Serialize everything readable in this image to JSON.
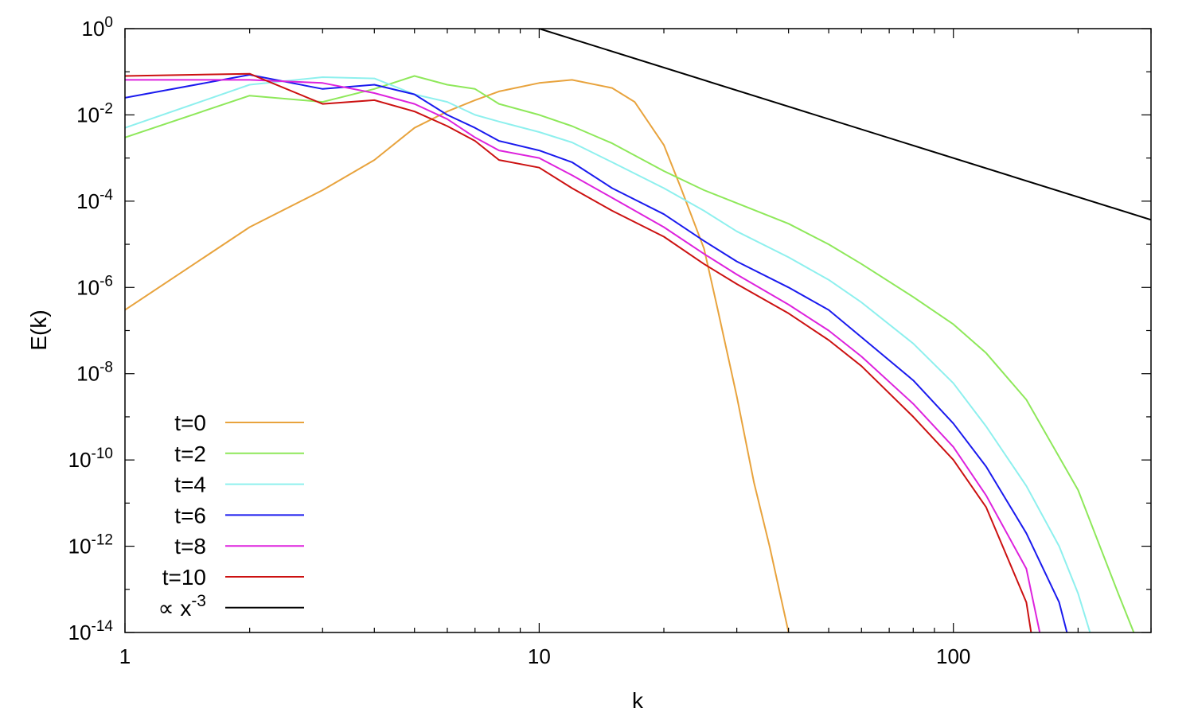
{
  "chart_data": {
    "type": "line",
    "title": "",
    "xlabel": "k",
    "ylabel": "E(k)",
    "x_scale": "log",
    "y_scale": "log",
    "xlim": [
      1,
      300
    ],
    "ylim": [
      1e-14,
      1
    ],
    "grid": false,
    "legend_position": "bottom-left",
    "x_ticks": [
      {
        "value": 1,
        "label": "1"
      },
      {
        "value": 10,
        "label": "10"
      },
      {
        "value": 100,
        "label": "100"
      }
    ],
    "y_ticks": [
      {
        "value": 1,
        "base": "10",
        "exp": "0"
      },
      {
        "value": 0.01,
        "base": "10",
        "exp": "-2"
      },
      {
        "value": 0.0001,
        "base": "10",
        "exp": "-4"
      },
      {
        "value": 1e-06,
        "base": "10",
        "exp": "-6"
      },
      {
        "value": 1e-08,
        "base": "10",
        "exp": "-8"
      },
      {
        "value": 1e-10,
        "base": "10",
        "exp": "-10"
      },
      {
        "value": 1e-12,
        "base": "10",
        "exp": "-12"
      },
      {
        "value": 1e-14,
        "base": "10",
        "exp": "-14"
      }
    ],
    "series": [
      {
        "name": "t=0",
        "color": "#e8a33d",
        "x": [
          1,
          2,
          3,
          4,
          5,
          6,
          7,
          8,
          10,
          12,
          15,
          17,
          20,
          22,
          25,
          27,
          30,
          33,
          36,
          40,
          42
        ],
        "y": [
          3e-07,
          2.5e-05,
          0.00018,
          0.0009,
          0.005,
          0.012,
          0.022,
          0.035,
          0.055,
          0.065,
          0.042,
          0.02,
          0.002,
          0.0002,
          8e-06,
          3e-07,
          3e-09,
          3e-11,
          1e-12,
          1e-14,
          1e-15
        ]
      },
      {
        "name": "t=2",
        "color": "#8ee85a",
        "x": [
          1,
          2,
          3,
          4,
          5,
          6,
          7,
          8,
          10,
          12,
          15,
          20,
          25,
          30,
          40,
          50,
          60,
          80,
          100,
          120,
          150,
          200,
          250,
          300
        ],
        "y": [
          0.003,
          0.028,
          0.02,
          0.04,
          0.08,
          0.05,
          0.04,
          0.018,
          0.01,
          0.0055,
          0.0022,
          0.0005,
          0.00018,
          9e-05,
          3e-05,
          1e-05,
          3.5e-06,
          6e-07,
          1.4e-07,
          3e-08,
          2.5e-09,
          2e-11,
          8e-14,
          1e-15
        ]
      },
      {
        "name": "t=4",
        "color": "#8ef0ee",
        "x": [
          1,
          2,
          3,
          4,
          5,
          6,
          7,
          8,
          10,
          12,
          15,
          20,
          25,
          30,
          40,
          50,
          60,
          80,
          100,
          120,
          150,
          180,
          200,
          230
        ],
        "y": [
          0.005,
          0.05,
          0.075,
          0.07,
          0.03,
          0.02,
          0.01,
          0.007,
          0.004,
          0.0023,
          0.0008,
          0.0002,
          6e-05,
          2e-05,
          5e-06,
          1.5e-06,
          4.5e-07,
          5e-08,
          6e-09,
          6e-10,
          2.5e-11,
          1e-12,
          8e-14,
          1e-15
        ]
      },
      {
        "name": "t=6",
        "color": "#1a1aee",
        "x": [
          1,
          2,
          3,
          4,
          5,
          6,
          7,
          8,
          10,
          12,
          15,
          20,
          25,
          30,
          40,
          50,
          60,
          80,
          100,
          120,
          150,
          180,
          200
        ],
        "y": [
          0.025,
          0.085,
          0.04,
          0.05,
          0.03,
          0.01,
          0.005,
          0.0025,
          0.0015,
          0.0008,
          0.0002,
          5e-05,
          1.2e-05,
          4e-06,
          1e-06,
          3e-07,
          7e-08,
          7e-09,
          7e-10,
          7e-11,
          2e-12,
          5e-14,
          1e-15
        ]
      },
      {
        "name": "t=8",
        "color": "#dd22dd",
        "x": [
          1,
          2,
          3,
          4,
          5,
          6,
          7,
          8,
          10,
          12,
          15,
          20,
          25,
          30,
          40,
          50,
          60,
          80,
          100,
          120,
          150,
          170
        ],
        "y": [
          0.065,
          0.065,
          0.055,
          0.032,
          0.018,
          0.008,
          0.003,
          0.0015,
          0.001,
          0.0004,
          0.00012,
          2.5e-05,
          6e-06,
          2e-06,
          4e-07,
          1e-07,
          2.5e-08,
          2e-09,
          2e-10,
          1.5e-11,
          3e-13,
          1e-15
        ]
      },
      {
        "name": "t=10",
        "color": "#cc1111",
        "x": [
          1,
          2,
          3,
          4,
          5,
          6,
          7,
          8,
          10,
          12,
          15,
          20,
          25,
          30,
          40,
          50,
          60,
          80,
          100,
          120,
          150,
          160
        ],
        "y": [
          0.08,
          0.09,
          0.018,
          0.022,
          0.012,
          0.0055,
          0.0025,
          0.0009,
          0.0006,
          0.0002,
          6e-05,
          1.5e-05,
          3.5e-06,
          1.2e-06,
          2.5e-07,
          6e-08,
          1.5e-08,
          1e-09,
          1e-10,
          8e-12,
          5e-14,
          1e-15
        ]
      },
      {
        "name": "∝ x-3",
        "color": "#000000",
        "x": [
          10,
          300
        ],
        "y": [
          1,
          3.7e-05
        ]
      }
    ],
    "legend": [
      {
        "label": "t=0",
        "color": "#e8a33d"
      },
      {
        "label": "t=2",
        "color": "#8ee85a"
      },
      {
        "label": "t=4",
        "color": "#8ef0ee"
      },
      {
        "label": "t=6",
        "color": "#1a1aee"
      },
      {
        "label": "t=8",
        "color": "#dd22dd"
      },
      {
        "label": "t=10",
        "color": "#cc1111"
      },
      {
        "label": "∝ x",
        "sup": "-3",
        "color": "#000000"
      }
    ]
  }
}
